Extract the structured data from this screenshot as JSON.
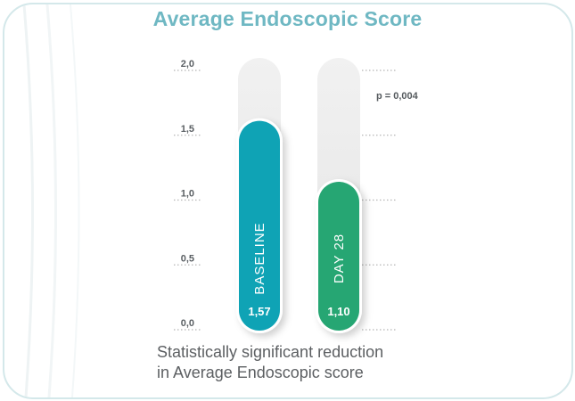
{
  "chart_data": {
    "type": "bar",
    "title": "Average Endoscopic Score",
    "categories": [
      "BASELINE",
      "DAY 28"
    ],
    "values": [
      1.57,
      1.1
    ],
    "value_labels": [
      "1,57",
      "1,10"
    ],
    "ylim": [
      0,
      2.0
    ],
    "yticks": [
      0,
      0.5,
      1.0,
      1.5,
      2.0
    ],
    "ytick_labels": [
      "0,0",
      "0,5",
      "1,0",
      "1,5",
      "2,0"
    ],
    "colors": [
      "#0fa3b5",
      "#26a673"
    ],
    "annotation": "p = 0,004",
    "xlabel": "",
    "ylabel": ""
  },
  "caption": {
    "line1": "Statistically significant reduction",
    "line2": "in Average Endoscopic score"
  }
}
